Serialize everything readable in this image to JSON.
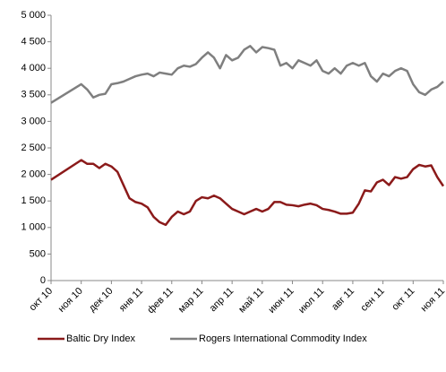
{
  "chart_data": {
    "type": "line",
    "x": [
      0,
      1,
      1.2,
      1.4,
      1.6,
      1.8,
      2,
      2.2,
      2.4,
      2.6,
      2.8,
      3,
      3.2,
      3.4,
      3.6,
      3.8,
      4,
      4.2,
      4.4,
      4.6,
      4.8,
      5,
      5.2,
      5.4,
      5.6,
      5.8,
      6,
      6.2,
      6.4,
      6.6,
      6.8,
      7,
      7.2,
      7.4,
      7.6,
      7.8,
      8,
      8.2,
      8.4,
      8.6,
      8.8,
      9,
      9.2,
      9.4,
      9.6,
      9.8,
      10,
      10.2,
      10.4,
      10.6,
      10.8,
      11,
      11.2,
      11.4,
      11.6,
      11.8,
      12,
      12.2,
      12.4,
      12.6,
      12.8,
      13
    ],
    "series": [
      {
        "name": "Baltic Dry Index",
        "color": "#8b1a1a",
        "values": [
          1900,
          2270,
          2200,
          2200,
          2120,
          2200,
          2150,
          2050,
          1800,
          1550,
          1480,
          1450,
          1380,
          1200,
          1100,
          1050,
          1200,
          1300,
          1250,
          1300,
          1500,
          1570,
          1550,
          1600,
          1550,
          1450,
          1350,
          1300,
          1250,
          1300,
          1350,
          1300,
          1350,
          1480,
          1480,
          1430,
          1420,
          1400,
          1430,
          1450,
          1420,
          1350,
          1330,
          1300,
          1260,
          1260,
          1280,
          1450,
          1700,
          1680,
          1850,
          1900,
          1800,
          1950,
          1920,
          1950,
          2100,
          2180,
          2150,
          2170,
          1950,
          1780
        ]
      },
      {
        "name": "Rogers International Commodity Index",
        "color": "#7f7f7f",
        "values": [
          3350,
          3700,
          3600,
          3450,
          3500,
          3520,
          3700,
          3720,
          3750,
          3800,
          3850,
          3880,
          3900,
          3850,
          3920,
          3900,
          3880,
          4000,
          4050,
          4030,
          4080,
          4200,
          4300,
          4200,
          4000,
          4250,
          4150,
          4200,
          4350,
          4420,
          4300,
          4400,
          4380,
          4350,
          4050,
          4100,
          4000,
          4150,
          4100,
          4050,
          4150,
          3950,
          3900,
          4000,
          3900,
          4050,
          4100,
          4050,
          4100,
          3850,
          3750,
          3900,
          3850,
          3950,
          4000,
          3950,
          3700,
          3550,
          3500,
          3600,
          3650,
          3750
        ]
      }
    ],
    "xlim": [
      0,
      13
    ],
    "xticks": [
      {
        "value": 0,
        "label": "окт 10"
      },
      {
        "value": 1,
        "label": "ноя 10"
      },
      {
        "value": 2,
        "label": "дек 10"
      },
      {
        "value": 3,
        "label": "янв 11"
      },
      {
        "value": 4,
        "label": "фев 11"
      },
      {
        "value": 5,
        "label": "мар 11"
      },
      {
        "value": 6,
        "label": "апр 11"
      },
      {
        "value": 7,
        "label": "май 11"
      },
      {
        "value": 8,
        "label": "июн 11"
      },
      {
        "value": 9,
        "label": "июл 11"
      },
      {
        "value": 10,
        "label": "авг 11"
      },
      {
        "value": 11,
        "label": "сен 11"
      },
      {
        "value": 12,
        "label": "окт 11"
      },
      {
        "value": 13,
        "label": "ноя 11"
      }
    ],
    "ylim": [
      0,
      5000
    ],
    "yticks": [
      0,
      500,
      {
        "value": 1000,
        "label": "1 000"
      },
      {
        "value": 1500,
        "label": "1 500"
      },
      {
        "value": 2000,
        "label": "2 000"
      },
      {
        "value": 2500,
        "label": "2 500"
      },
      {
        "value": 3000,
        "label": "3 000"
      },
      {
        "value": 3500,
        "label": "3 500"
      },
      {
        "value": 4000,
        "label": "4 000"
      },
      {
        "value": 4500,
        "label": "4 500"
      },
      {
        "value": 5000,
        "label": "5 000"
      }
    ],
    "grid": false,
    "legend": "bottom"
  }
}
